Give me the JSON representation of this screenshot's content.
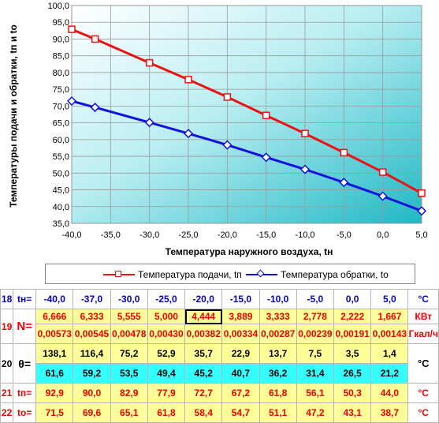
{
  "chart_data": {
    "type": "line",
    "x": [
      -40.0,
      -37.0,
      -30.0,
      -25.0,
      -20.0,
      -15.0,
      -10.0,
      -5.0,
      0.0,
      5.0
    ],
    "series": [
      {
        "name": "Температура подачи, tп",
        "color": "#ee1111",
        "marker": "square",
        "values": [
          92.9,
          90.0,
          82.9,
          77.9,
          72.7,
          67.2,
          61.8,
          56.1,
          50.3,
          44.0
        ]
      },
      {
        "name": "Температура обратки, to",
        "color": "#1111dd",
        "marker": "diamond",
        "values": [
          71.5,
          69.6,
          65.1,
          61.8,
          58.4,
          54.7,
          51.1,
          47.2,
          43.1,
          38.7
        ]
      }
    ],
    "xlim": [
      -40,
      5
    ],
    "ylim": [
      35,
      100
    ],
    "x_ticks": [
      "-40,0",
      "-35,0",
      "-30,0",
      "-25,0",
      "-20,0",
      "-15,0",
      "-10,0",
      "-5,0",
      "0,0",
      "5,0"
    ],
    "y_ticks": [
      "35,0",
      "40,0",
      "45,0",
      "50,0",
      "55,0",
      "60,0",
      "65,0",
      "70,0",
      "75,0",
      "80,0",
      "85,0",
      "90,0",
      "95,0",
      "100,0"
    ],
    "xlabel": "Температура наружного воздуха, tн",
    "ylabel": "Температуры подачи и обратки, tп и to",
    "grid": true,
    "legend": "bottom"
  },
  "legend": {
    "supply": "Температура подачи, tп",
    "return": "Температура обратки, to"
  },
  "table": {
    "rows": {
      "r18": {
        "num": "18",
        "label": "tн=",
        "unit": "°C",
        "values": [
          "-40,0",
          "-37,0",
          "-30,0",
          "-25,0",
          "-20,0",
          "-15,0",
          "-10,0",
          "-5,0",
          "0,0",
          "5,0"
        ]
      },
      "r19": {
        "num": "19",
        "label": "N=",
        "unit": "КВт",
        "unit2": "Гкал/ч",
        "values": [
          "6,666",
          "6,333",
          "5,555",
          "5,000",
          "4,444",
          "3,889",
          "3,333",
          "2,778",
          "2,222",
          "1,667"
        ],
        "sub": [
          "0,00573",
          "0,00545",
          "0,00478",
          "0,00430",
          "0,00382",
          "0,00334",
          "0,00287",
          "0,00239",
          "0,00191",
          "0,00143"
        ]
      },
      "r20": {
        "num": "20",
        "label": "θ=",
        "unit": "°C",
        "values": [
          "138,1",
          "116,4",
          "75,2",
          "52,9",
          "35,7",
          "22,9",
          "13,7",
          "7,5",
          "3,5",
          "1,4"
        ],
        "sub": [
          "61,6",
          "59,2",
          "53,5",
          "49,4",
          "45,2",
          "40,7",
          "36,2",
          "31,4",
          "26,5",
          "21,2"
        ]
      },
      "r21": {
        "num": "21",
        "label": "tп=",
        "unit": "°C",
        "values": [
          "92,9",
          "90,0",
          "82,9",
          "77,9",
          "72,7",
          "67,2",
          "61,8",
          "56,1",
          "50,3",
          "44,0"
        ]
      },
      "r22": {
        "num": "22",
        "label": "to=",
        "unit": "°C",
        "values": [
          "71,5",
          "69,6",
          "65,1",
          "61,8",
          "58,4",
          "54,7",
          "51,1",
          "47,2",
          "43,1",
          "38,7"
        ]
      }
    }
  }
}
